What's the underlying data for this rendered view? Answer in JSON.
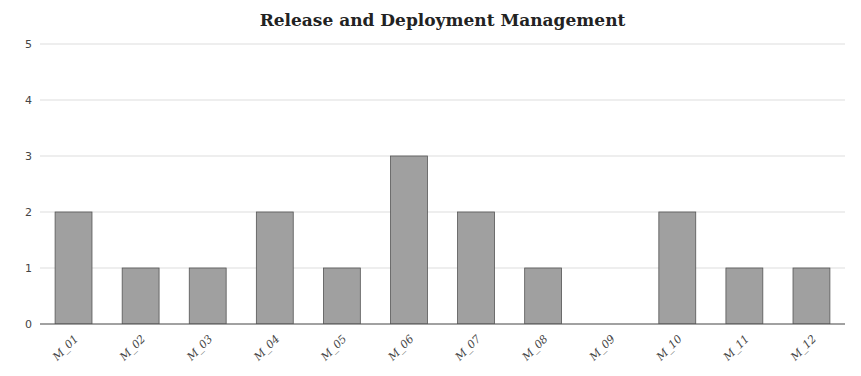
{
  "chart_data": {
    "type": "bar",
    "title": "Release and Deployment Management",
    "categories": [
      "M_01",
      "M_02",
      "M_03",
      "M_04",
      "M_05",
      "M_06",
      "M_07",
      "M_08",
      "M_09",
      "M_10",
      "M_11",
      "M_12"
    ],
    "values": [
      2,
      1,
      1,
      2,
      1,
      3,
      2,
      1,
      0,
      2,
      1,
      1
    ],
    "color": "#a0a0a0",
    "ylim": [
      0,
      5
    ],
    "yticks": [
      0,
      1,
      2,
      3,
      4,
      5
    ],
    "grid": true
  }
}
